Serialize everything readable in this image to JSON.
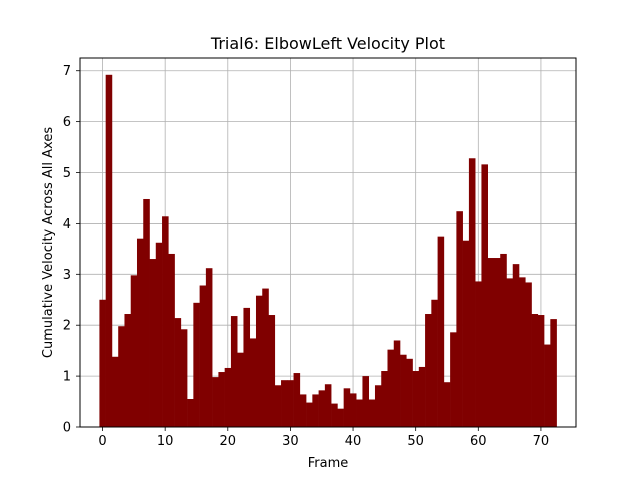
{
  "chart_data": {
    "type": "bar",
    "title": "Trial6: ElbowLeft Velocity Plot",
    "xlabel": "Frame",
    "ylabel": "Cumulative Velocity Across All Axes",
    "xlim": [
      -3.6,
      75.6
    ],
    "ylim": [
      0,
      7.25
    ],
    "xticks": [
      0,
      10,
      20,
      30,
      40,
      50,
      60,
      70
    ],
    "yticks": [
      0,
      1,
      2,
      3,
      4,
      5,
      6,
      7
    ],
    "grid": true,
    "bar_color": "#800000",
    "grid_color": "#b0b0b0",
    "x": [
      0,
      1,
      2,
      3,
      4,
      5,
      6,
      7,
      8,
      9,
      10,
      11,
      12,
      13,
      14,
      15,
      16,
      17,
      18,
      19,
      20,
      21,
      22,
      23,
      24,
      25,
      26,
      27,
      28,
      29,
      30,
      31,
      32,
      33,
      34,
      35,
      36,
      37,
      38,
      39,
      40,
      41,
      42,
      43,
      44,
      45,
      46,
      47,
      48,
      49,
      50,
      51,
      52,
      53,
      54,
      55,
      56,
      57,
      58,
      59,
      60,
      61,
      62,
      63,
      64,
      65,
      66,
      67,
      68,
      69,
      70,
      71,
      72
    ],
    "values": [
      2.5,
      6.92,
      1.38,
      1.98,
      2.22,
      2.98,
      3.7,
      4.48,
      3.3,
      3.62,
      4.14,
      3.4,
      2.14,
      1.92,
      0.55,
      2.44,
      2.78,
      3.12,
      0.98,
      1.08,
      1.16,
      2.18,
      1.46,
      2.34,
      1.74,
      2.58,
      2.72,
      2.2,
      0.82,
      0.92,
      0.92,
      1.06,
      0.64,
      0.48,
      0.64,
      0.72,
      0.84,
      0.46,
      0.36,
      0.76,
      0.66,
      0.54,
      1.0,
      0.54,
      0.82,
      1.1,
      1.52,
      1.7,
      1.42,
      1.34,
      1.1,
      1.18,
      2.22,
      2.5,
      3.74,
      0.88,
      1.86,
      4.24,
      3.66,
      5.28,
      2.86,
      5.16,
      3.32,
      3.32,
      3.4,
      2.92,
      3.2,
      2.94,
      2.84,
      2.22,
      2.2,
      1.62,
      2.12
    ]
  }
}
